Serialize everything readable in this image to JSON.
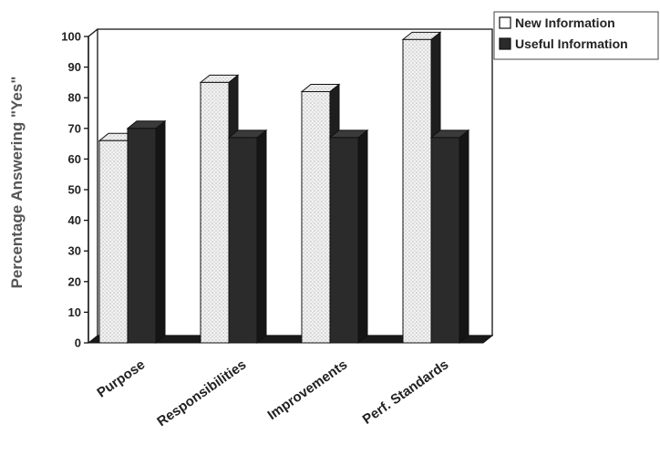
{
  "chart_data": {
    "type": "bar",
    "title": "",
    "xlabel": "",
    "ylabel": "Percentage Answering \"Yes\"",
    "ylim": [
      0,
      100
    ],
    "yticks": [
      0,
      10,
      20,
      30,
      40,
      50,
      60,
      70,
      80,
      90,
      100
    ],
    "categories": [
      "Purpose",
      "Responsibilities",
      "Improvements",
      "Perf. Standards"
    ],
    "series": [
      {
        "name": "New Information",
        "values": [
          66,
          85,
          82,
          99
        ],
        "color": "#eeeeee",
        "pattern": "dotted"
      },
      {
        "name": "Useful Information",
        "values": [
          70,
          67,
          67,
          67
        ],
        "color": "#2b2b2b"
      }
    ],
    "legend": "top-right",
    "grid": false,
    "style": "3d"
  }
}
